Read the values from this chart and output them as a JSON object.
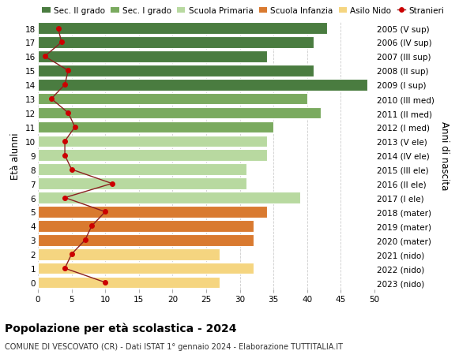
{
  "ages": [
    18,
    17,
    16,
    15,
    14,
    13,
    12,
    11,
    10,
    9,
    8,
    7,
    6,
    5,
    4,
    3,
    2,
    1,
    0
  ],
  "right_labels": [
    "2005 (V sup)",
    "2006 (IV sup)",
    "2007 (III sup)",
    "2008 (II sup)",
    "2009 (I sup)",
    "2010 (III med)",
    "2011 (II med)",
    "2012 (I med)",
    "2013 (V ele)",
    "2014 (IV ele)",
    "2015 (III ele)",
    "2016 (II ele)",
    "2017 (I ele)",
    "2018 (mater)",
    "2019 (mater)",
    "2020 (mater)",
    "2021 (nido)",
    "2022 (nido)",
    "2023 (nido)"
  ],
  "bar_values": [
    43,
    41,
    34,
    41,
    49,
    40,
    42,
    35,
    34,
    34,
    31,
    31,
    39,
    34,
    32,
    32,
    27,
    32,
    27
  ],
  "bar_colors": [
    "#4a7c40",
    "#4a7c40",
    "#4a7c40",
    "#4a7c40",
    "#4a7c40",
    "#7aaa5f",
    "#7aaa5f",
    "#7aaa5f",
    "#b8d9a0",
    "#b8d9a0",
    "#b8d9a0",
    "#b8d9a0",
    "#b8d9a0",
    "#d97a30",
    "#d97a30",
    "#d97a30",
    "#f5d580",
    "#f5d580",
    "#f5d580"
  ],
  "stranieri_values": [
    3,
    3.5,
    1,
    4.5,
    4,
    2,
    4.5,
    5.5,
    4,
    4,
    5,
    11,
    4,
    10,
    8,
    7,
    5,
    4,
    10
  ],
  "legend_labels": [
    "Sec. II grado",
    "Sec. I grado",
    "Scuola Primaria",
    "Scuola Infanzia",
    "Asilo Nido",
    "Stranieri"
  ],
  "legend_colors": [
    "#4a7c40",
    "#7aaa5f",
    "#b8d9a0",
    "#d97a30",
    "#f5d580",
    "#cc0000"
  ],
  "title": "Popolazione per età scolastica - 2024",
  "subtitle": "COMUNE DI VESCOVATO (CR) - Dati ISTAT 1° gennaio 2024 - Elaborazione TUTTITALIA.IT",
  "ylabel_left": "Età alunni",
  "ylabel_right": "Anni di nascita",
  "xlim": [
    0,
    50
  ],
  "xticks": [
    0,
    5,
    10,
    15,
    20,
    25,
    30,
    35,
    40,
    45,
    50
  ],
  "bg_color": "#ffffff",
  "bar_height": 0.82,
  "stranieri_line_color": "#8b2020",
  "stranieri_dot_color": "#cc0000"
}
